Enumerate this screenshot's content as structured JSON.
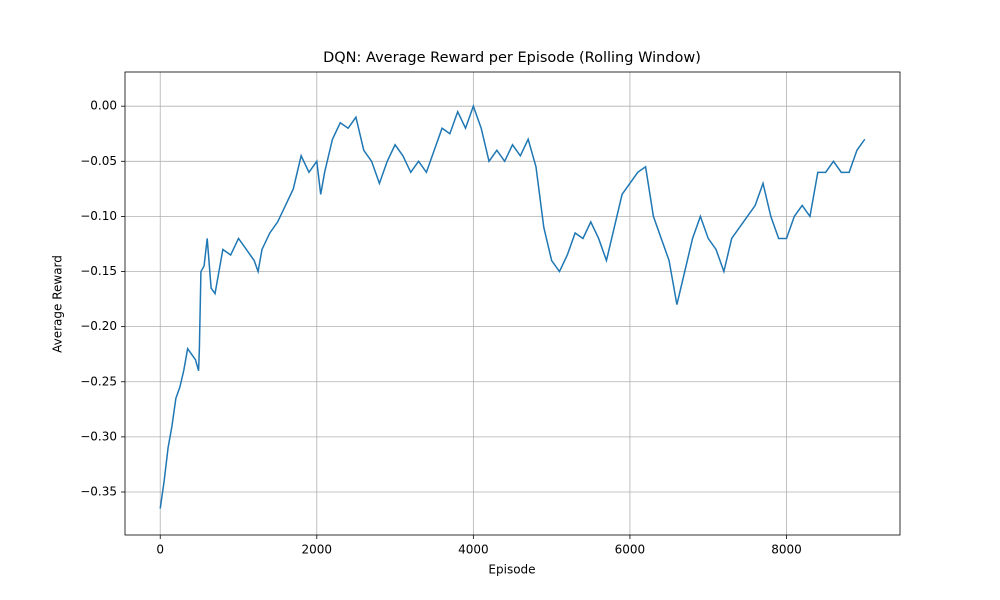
{
  "chart_data": {
    "type": "line",
    "title": "DQN: Average Reward per Episode (Rolling Window)",
    "x_label": "Episode",
    "y_label": "Average Reward",
    "grid": true,
    "xlim": [
      -450,
      9450
    ],
    "ylim": [
      -0.389,
      0.031
    ],
    "xticks": [
      0,
      2000,
      4000,
      6000,
      8000
    ],
    "yticks": [
      {
        "value": -0.35,
        "label": "−0.35"
      },
      {
        "value": -0.3,
        "label": "−0.30"
      },
      {
        "value": -0.25,
        "label": "−0.25"
      },
      {
        "value": -0.2,
        "label": "−0.20"
      },
      {
        "value": -0.15,
        "label": "−0.15"
      },
      {
        "value": -0.1,
        "label": "−0.10"
      },
      {
        "value": -0.05,
        "label": "−0.05"
      },
      {
        "value": 0.0,
        "label": "0.00"
      }
    ],
    "x": [
      0,
      50,
      100,
      150,
      200,
      250,
      300,
      350,
      400,
      450,
      490,
      500,
      520,
      560,
      600,
      650,
      700,
      750,
      800,
      900,
      1000,
      1100,
      1200,
      1250,
      1300,
      1400,
      1500,
      1600,
      1700,
      1800,
      1900,
      2000,
      2050,
      2100,
      2200,
      2300,
      2400,
      2500,
      2600,
      2700,
      2800,
      2900,
      3000,
      3100,
      3200,
      3300,
      3400,
      3500,
      3600,
      3700,
      3800,
      3900,
      4000,
      4050,
      4100,
      4200,
      4300,
      4400,
      4500,
      4600,
      4700,
      4800,
      4900,
      5000,
      5100,
      5200,
      5300,
      5400,
      5500,
      5600,
      5700,
      5800,
      5900,
      6000,
      6100,
      6200,
      6300,
      6400,
      6500,
      6600,
      6700,
      6800,
      6900,
      7000,
      7100,
      7200,
      7300,
      7400,
      7500,
      7600,
      7700,
      7800,
      7900,
      8000,
      8100,
      8200,
      8300,
      8400,
      8500,
      8600,
      8700,
      8800,
      8900,
      9000
    ],
    "series": [
      {
        "name": "Average Reward",
        "color": "#1f77b4",
        "values": [
          -0.365,
          -0.34,
          -0.31,
          -0.29,
          -0.265,
          -0.255,
          -0.24,
          -0.22,
          -0.225,
          -0.23,
          -0.24,
          -0.22,
          -0.15,
          -0.145,
          -0.12,
          -0.165,
          -0.17,
          -0.15,
          -0.13,
          -0.135,
          -0.12,
          -0.13,
          -0.14,
          -0.15,
          -0.13,
          -0.115,
          -0.105,
          -0.09,
          -0.075,
          -0.045,
          -0.06,
          -0.05,
          -0.08,
          -0.06,
          -0.03,
          -0.015,
          -0.02,
          -0.01,
          -0.04,
          -0.05,
          -0.07,
          -0.05,
          -0.035,
          -0.045,
          -0.06,
          -0.05,
          -0.06,
          -0.04,
          -0.02,
          -0.025,
          -0.005,
          -0.02,
          0.0,
          -0.01,
          -0.02,
          -0.05,
          -0.04,
          -0.05,
          -0.035,
          -0.045,
          -0.03,
          -0.055,
          -0.11,
          -0.14,
          -0.15,
          -0.135,
          -0.115,
          -0.12,
          -0.105,
          -0.12,
          -0.14,
          -0.11,
          -0.08,
          -0.07,
          -0.06,
          -0.055,
          -0.1,
          -0.12,
          -0.14,
          -0.18,
          -0.15,
          -0.12,
          -0.1,
          -0.12,
          -0.13,
          -0.15,
          -0.12,
          -0.11,
          -0.1,
          -0.09,
          -0.07,
          -0.1,
          -0.12,
          -0.12,
          -0.1,
          -0.09,
          -0.1,
          -0.06,
          -0.06,
          -0.05,
          -0.06,
          -0.06,
          -0.04,
          -0.03
        ]
      }
    ]
  }
}
